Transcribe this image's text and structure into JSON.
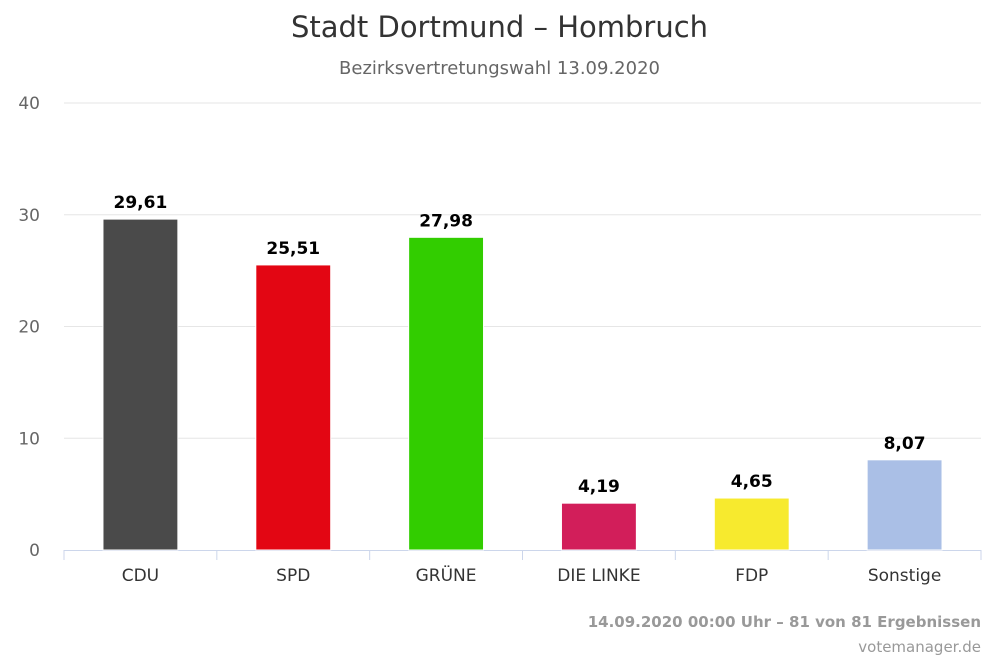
{
  "chart_data": {
    "type": "bar",
    "title": "Stadt Dortmund – Hombruch",
    "subtitle": "Bezirksvertretungswahl 13.09.2020",
    "categories": [
      "CDU",
      "SPD",
      "GRÜNE",
      "DIE LINKE",
      "FDP",
      "Sonstige"
    ],
    "values": [
      29.61,
      25.51,
      27.98,
      4.19,
      4.65,
      8.07
    ],
    "value_labels": [
      "29,61",
      "25,51",
      "27,98",
      "4,19",
      "4,65",
      "8,07"
    ],
    "colors": [
      "#4a4a4a",
      "#e30613",
      "#32cd00",
      "#d21e5a",
      "#f7ea2e",
      "#aabfe6"
    ],
    "ylim": [
      0,
      40
    ],
    "yticks": [
      0,
      10,
      20,
      30,
      40
    ],
    "xlabel": "",
    "ylabel": "",
    "grid": true
  },
  "footer": {
    "results": "14.09.2020 00:00 Uhr – 81 von 81 Ergebnissen",
    "source": "votemanager.de"
  }
}
